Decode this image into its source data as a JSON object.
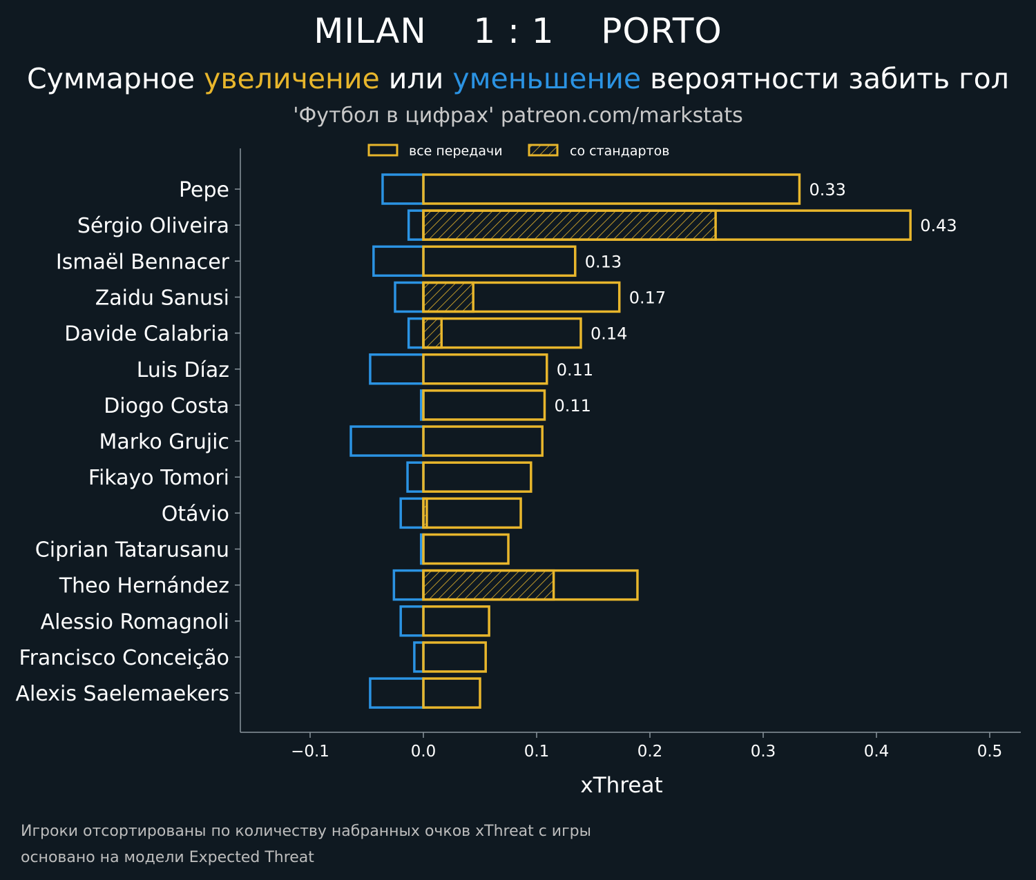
{
  "header": {
    "title_home": "MILAN",
    "title_score": "1 : 1",
    "title_away": "PORTO",
    "subtitle_prefix": "Суммарное ",
    "subtitle_increase": "увеличение",
    "subtitle_middle": " или ",
    "subtitle_decrease": "уменьшение",
    "subtitle_suffix": " вероятности забить гол",
    "source": "'Футбол в цифрах' patreon.com/markstats"
  },
  "colors": {
    "background": "#0f1921",
    "positive": "#e8b62c",
    "negative": "#2b93e3",
    "axis": "#8a969e"
  },
  "chart_data": {
    "type": "bar",
    "orientation": "horizontal",
    "xlabel": "xThreat",
    "xlim": [
      -0.16,
      0.53
    ],
    "xticks": [
      -0.1,
      0.0,
      0.1,
      0.2,
      0.3,
      0.4,
      0.5
    ],
    "xtick_labels": [
      "−0.1",
      "0.0",
      "0.1",
      "0.2",
      "0.3",
      "0.4",
      "0.5"
    ],
    "legend": {
      "position": "top-center",
      "all_passes": "все передачи",
      "set_pieces": "со стандартов"
    },
    "categories": [
      "Pepe",
      "Sérgio Oliveira",
      "Ismaël Bennacer",
      "Zaidu Sanusi",
      "Davide Calabria",
      "Luis Díaz",
      "Diogo Costa",
      "Marko Grujic",
      "Fikayo Tomori",
      "Otávio",
      "Ciprian Tatarusanu",
      "Theo Hernández",
      "Alessio Romagnoli",
      "Francisco Conceição",
      "Alexis Saelemaekers"
    ],
    "series": [
      {
        "name": "увеличение (все передачи)",
        "values": [
          0.332,
          0.43,
          0.134,
          0.173,
          0.139,
          0.109,
          0.107,
          0.105,
          0.095,
          0.086,
          0.075,
          0.189,
          0.058,
          0.055,
          0.05
        ]
      },
      {
        "name": "увеличение (со стандартов)",
        "values": [
          0,
          0.258,
          0,
          0.044,
          0.016,
          0,
          0,
          0,
          0,
          0.003,
          0,
          0.115,
          0,
          0,
          0
        ]
      },
      {
        "name": "уменьшение",
        "values": [
          -0.036,
          -0.013,
          -0.044,
          -0.025,
          -0.013,
          -0.047,
          -0.002,
          -0.064,
          -0.014,
          -0.02,
          -0.002,
          -0.026,
          -0.02,
          -0.008,
          -0.047
        ]
      }
    ],
    "value_labels": [
      "0.33",
      "0.43",
      "0.13",
      "0.17",
      "0.14",
      "0.11",
      "0.11",
      null,
      null,
      null,
      null,
      null,
      null,
      null,
      null
    ]
  },
  "footer": {
    "line1": "Игроки отсортированы по количеству набранных очков xThreat с игры",
    "line2": "основано на модели Expected Threat"
  }
}
